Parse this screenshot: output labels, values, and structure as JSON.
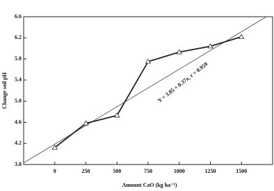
{
  "chart_data": {
    "type": "line",
    "x_label": "Amount CaO (kg ha⁻¹)",
    "y_label": "Change soil pH",
    "x": [
      0,
      250,
      500,
      750,
      1000,
      1250,
      1500
    ],
    "series": [
      {
        "color": "#222222",
        "values": [
          4.12,
          4.58,
          4.73,
          5.75,
          5.93,
          6.04,
          6.22
        ]
      }
    ],
    "fit": {
      "x": [
        -250,
        1700
      ],
      "values": [
        3.83,
        6.6
      ],
      "color": "#666666"
    },
    "annotation": "Y = 3.85 + 0.37x, r = 0.959",
    "xlim": [
      -250,
      1750
    ],
    "xticks": [
      0,
      250,
      500,
      750,
      1000,
      1250,
      1500
    ],
    "ylim": [
      3.8,
      6.6
    ],
    "yticks": [
      3.8,
      4.2,
      4.6,
      {
        "value": 5,
        "label": "5.0"
      },
      5.4,
      5.8,
      6.2,
      6.6
    ]
  }
}
